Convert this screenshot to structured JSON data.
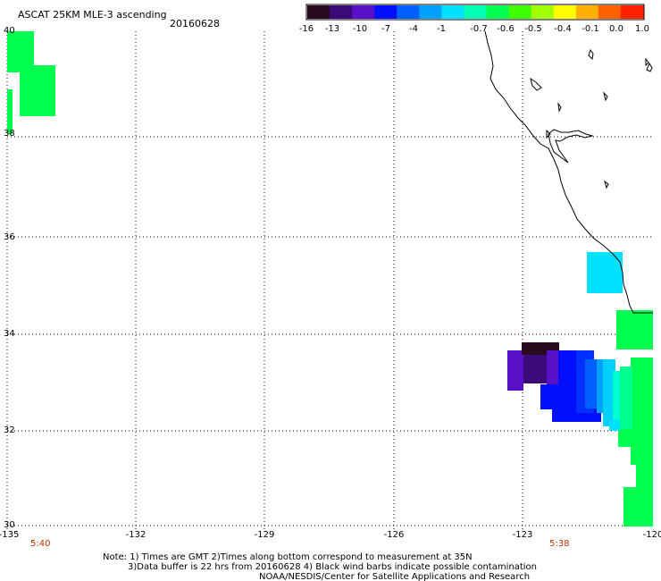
{
  "header": {
    "title": "ASCAT 25KM MLE-3 ascending",
    "date": "20160628"
  },
  "colorbar": {
    "colors": [
      "#2a0a1e",
      "#3a0a78",
      "#5a10c8",
      "#0010ff",
      "#0060ff",
      "#00a0ff",
      "#00e0ff",
      "#00ffb0",
      "#00ff50",
      "#40ff00",
      "#a0ff00",
      "#ffff00",
      "#ffb000",
      "#ff6000",
      "#ff2000"
    ],
    "labels": [
      "-16",
      "-13",
      "-10",
      "-7",
      "-4",
      "-1",
      "-0.7",
      "-0.6",
      "-0.5",
      "-0.4",
      "-0.1",
      "0.0",
      "1.0"
    ]
  },
  "map": {
    "lon_range": [
      -135,
      -120
    ],
    "lat_range": [
      30,
      40
    ],
    "lon_ticks": [
      "-135",
      "-132",
      "-129",
      "-126",
      "-123",
      "-120"
    ],
    "lat_ticks": [
      "30",
      "32",
      "34",
      "36",
      "38",
      "40"
    ],
    "grid": "dotted",
    "coastline_color": "#000000"
  },
  "times": {
    "left": "5:40",
    "right": "5:38",
    "color": "#c03000"
  },
  "notes": {
    "line1": "Note: 1) Times are GMT 2)Times along bottom correspond to measurement at 35N",
    "line2": "3)Data buffer is 22 hrs from 20160628 4) Black wind barbs indicate possible contamination",
    "line3": "NOAA/NESDIS/Center for Satellite Applications and Research"
  }
}
